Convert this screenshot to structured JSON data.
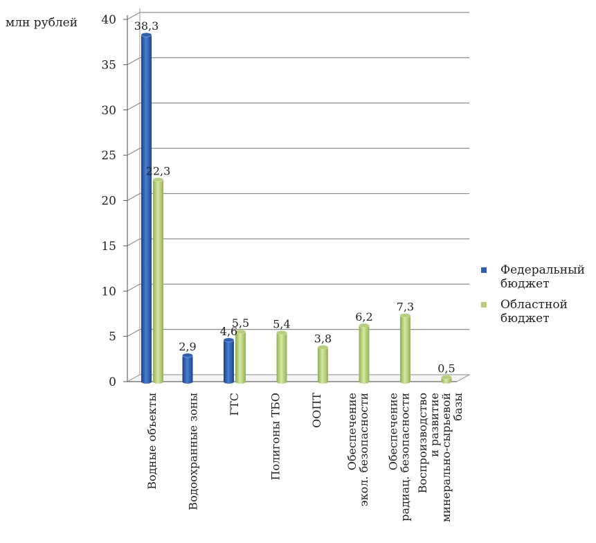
{
  "chart_data": {
    "type": "bar",
    "ylabel": "млн рублей",
    "ylim": [
      0,
      40
    ],
    "yticks": [
      0,
      5,
      10,
      15,
      20,
      25,
      30,
      35,
      40
    ],
    "grid": true,
    "legend_position": "right",
    "categories": [
      [
        "Водные объекты"
      ],
      [
        "Водоохранные зоны"
      ],
      [
        "ГТС"
      ],
      [
        "Полигоны ТБО"
      ],
      [
        "ООПТ"
      ],
      [
        "Обеспечение",
        "экол. безопасности"
      ],
      [
        "Обеспечение",
        "радиац. безопасности"
      ],
      [
        "Воспроизводство",
        "и развитие",
        "минерально-сырьевой",
        "базы"
      ]
    ],
    "series": [
      {
        "name": "Федеральный бюджет",
        "legend_lines": [
          "Федеральный",
          "бюджет"
        ],
        "color": "#2f5fb3",
        "values": [
          38.3,
          2.9,
          4.6,
          null,
          null,
          null,
          null,
          null
        ],
        "labels": [
          "38,3",
          "2,9",
          "4,6",
          "",
          "",
          "",
          "",
          ""
        ]
      },
      {
        "name": "Областной бюджет",
        "legend_lines": [
          "Областной",
          "бюджет"
        ],
        "color": "#b6cf7a",
        "values": [
          22.3,
          null,
          5.5,
          5.4,
          3.8,
          6.2,
          7.3,
          0.5
        ],
        "labels": [
          "22,3",
          "",
          "5,5",
          "5,4",
          "3,8",
          "6,2",
          "7,3",
          "0,5"
        ]
      }
    ]
  }
}
